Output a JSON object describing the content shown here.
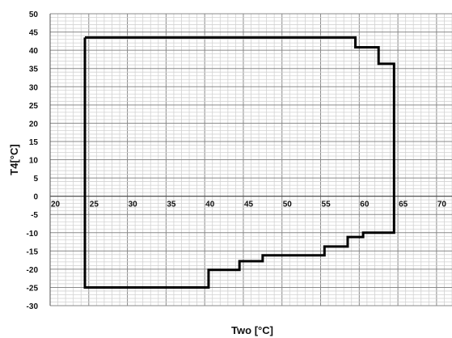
{
  "chart_data": {
    "type": "line",
    "xlabel": "Two [°C]",
    "ylabel": "T4[°C]",
    "xlim": [
      20,
      72
    ],
    "ylim": [
      -30,
      50
    ],
    "x_ticks": [
      20,
      25,
      30,
      35,
      40,
      45,
      50,
      55,
      60,
      65,
      70
    ],
    "y_ticks": [
      50,
      45,
      40,
      35,
      30,
      25,
      20,
      15,
      10,
      5,
      0,
      -5,
      -10,
      -15,
      -20,
      -25,
      -30
    ],
    "grid": true,
    "series": [
      {
        "color": "#000000",
        "points": [
          [
            24.5,
            43.5
          ],
          [
            59.5,
            43.5
          ],
          [
            59.5,
            40.8
          ],
          [
            62.5,
            40.8
          ],
          [
            62.5,
            36.3
          ],
          [
            64.5,
            36.3
          ],
          [
            64.5,
            -10
          ],
          [
            60.5,
            -10
          ],
          [
            60.5,
            -11.2
          ],
          [
            58.5,
            -11.2
          ],
          [
            58.5,
            -13.8
          ],
          [
            55.5,
            -13.8
          ],
          [
            55.5,
            -16.2
          ],
          [
            47.5,
            -16.2
          ],
          [
            47.5,
            -17.8
          ],
          [
            44.5,
            -17.8
          ],
          [
            44.5,
            -20.2
          ],
          [
            40.5,
            -20.2
          ],
          [
            40.5,
            -21.8
          ],
          [
            40.5,
            -25
          ],
          [
            24.5,
            -25
          ],
          [
            24.5,
            43.5
          ]
        ]
      }
    ]
  }
}
